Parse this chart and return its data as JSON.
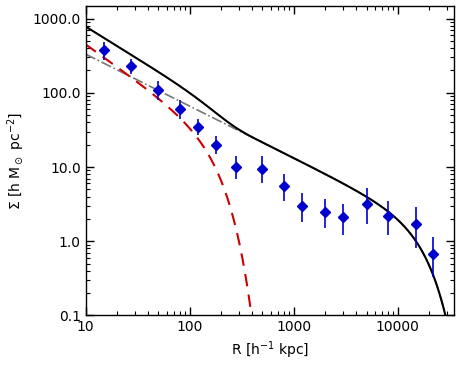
{
  "title": "",
  "xlabel": "R [h$^{-1}$ kpc]",
  "ylabel": "$\\Sigma$ [h M$_\\odot$ pc$^{-2}$]",
  "xlim": [
    10,
    35000
  ],
  "ylim": [
    0.1,
    1500
  ],
  "obs_x": [
    15,
    27,
    50,
    80,
    120,
    180,
    280,
    500,
    800,
    1200,
    2000,
    3000,
    5000,
    8000,
    15000,
    22000
  ],
  "obs_y": [
    380,
    230,
    110,
    60,
    35,
    20,
    10.0,
    9.5,
    5.5,
    3.0,
    2.5,
    2.1,
    3.2,
    2.2,
    1.7,
    0.68
  ],
  "obs_yerr_lo": [
    100,
    50,
    30,
    15,
    8,
    5,
    3.0,
    3.5,
    2.0,
    1.2,
    1.0,
    0.9,
    1.5,
    1.0,
    0.9,
    0.35
  ],
  "obs_yerr_hi": [
    100,
    60,
    35,
    20,
    10,
    6,
    4.0,
    4.5,
    2.5,
    1.5,
    1.2,
    1.1,
    2.0,
    1.3,
    1.2,
    0.45
  ],
  "sim_color": "#000000",
  "red_color": "#cc0000",
  "dash_color": "#777777",
  "obs_color": "#0000cc",
  "background_color": "#ffffff",
  "ytick_labels": [
    "0.1",
    "1.0",
    "10.0",
    "100.0",
    "1000.0"
  ],
  "ytick_vals": [
    0.1,
    1.0,
    10.0,
    100.0,
    1000.0
  ],
  "xtick_labels": [
    "10",
    "100",
    "1000",
    "10000"
  ],
  "xtick_vals": [
    10,
    100,
    1000,
    10000
  ]
}
